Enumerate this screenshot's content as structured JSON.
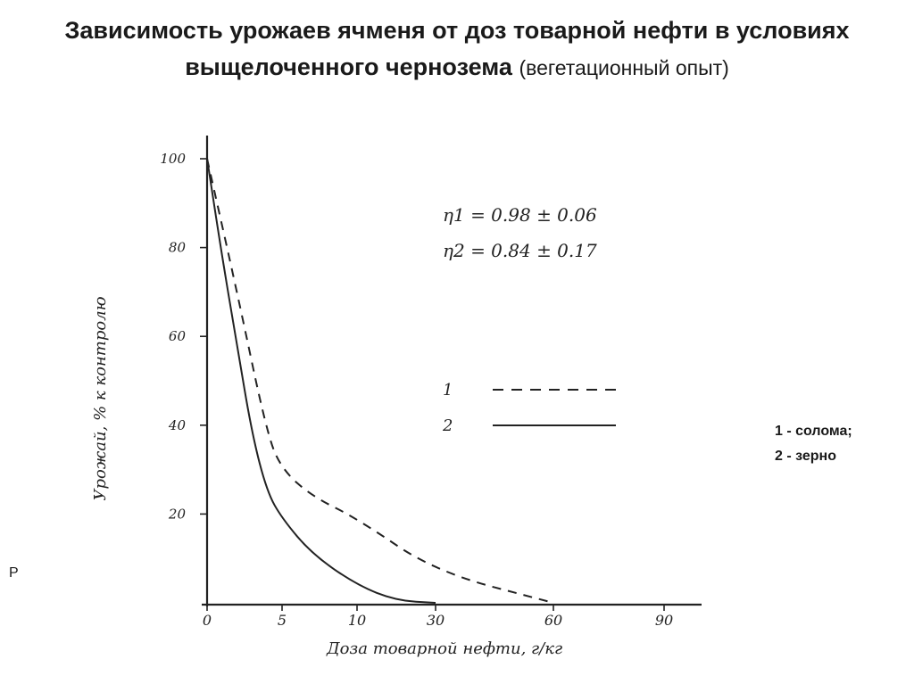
{
  "title": {
    "main": "Зависимость урожаев ячменя от доз товарной нефти в условиях выщелоченного чернозема",
    "sub": "(вегетационный опыт)"
  },
  "side_note": {
    "line1": "1 - солома;",
    "line2": "2 - зерно"
  },
  "stray_text": "Р",
  "chart_data": {
    "type": "line",
    "title": "",
    "xlabel": "Доза товарной нефти, г/кг",
    "ylabel": "Урожай, % к контролю",
    "x_ticks": [
      "0",
      "5",
      "10",
      "30",
      "60",
      "90"
    ],
    "y_ticks": [
      "20",
      "40",
      "60",
      "80",
      "100"
    ],
    "ylim": [
      0,
      100
    ],
    "x_scale": "broken axis: 0–10 linear, then 30, 60, 90",
    "grid": false,
    "legend_position": "right",
    "annotations": [
      "η1 = 0.98 ± 0.06",
      "η2 = 0.84 ± 0.17"
    ],
    "series": [
      {
        "name": "1",
        "style": "dashed",
        "points": [
          [
            0,
            100
          ],
          [
            2,
            70
          ],
          [
            4,
            38
          ],
          [
            5,
            30
          ],
          [
            7,
            24
          ],
          [
            10,
            19
          ],
          [
            30,
            7
          ],
          [
            60,
            0
          ]
        ]
      },
      {
        "name": "2",
        "style": "solid",
        "points": [
          [
            0,
            100
          ],
          [
            1,
            78
          ],
          [
            2,
            58
          ],
          [
            3,
            38
          ],
          [
            4,
            25
          ],
          [
            5,
            19
          ],
          [
            7,
            11
          ],
          [
            10,
            4
          ],
          [
            20,
            0.5
          ],
          [
            30,
            0
          ]
        ]
      }
    ]
  }
}
